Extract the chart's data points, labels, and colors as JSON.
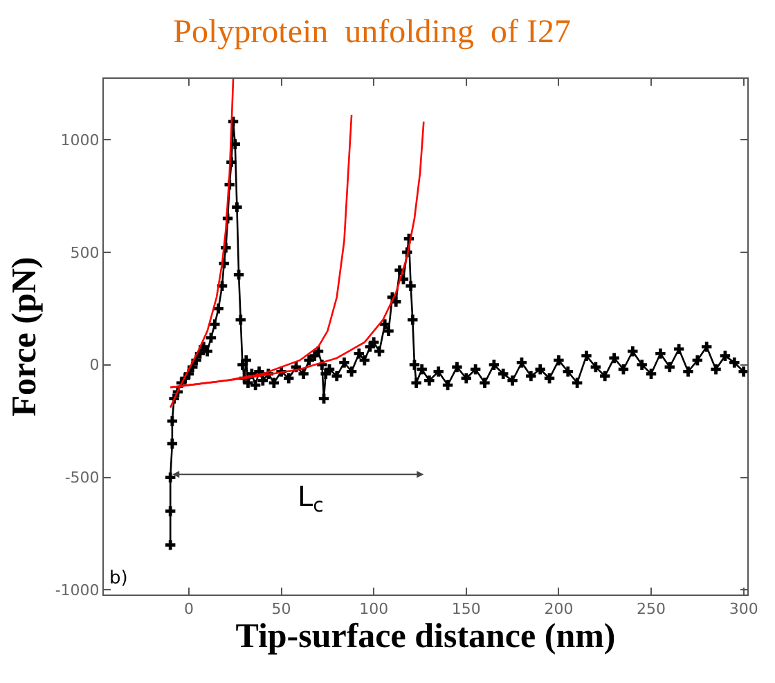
{
  "chart_data": {
    "type": "line",
    "title": "Polyprotein  unfolding  of I27",
    "xlabel": "Tip-surface distance (nm)",
    "ylabel": "Force (pN)",
    "xlim": [
      -46,
      302
    ],
    "xticks": [
      0,
      50,
      100,
      150,
      200,
      250,
      300
    ],
    "ylim": [
      -1020,
      1270
    ],
    "yticks": [
      -1000,
      -500,
      0,
      500,
      1000
    ],
    "series": [
      {
        "color": "#000000",
        "marker": "cross",
        "x": [
          -10,
          -10,
          -10,
          -9,
          -9,
          -8,
          -6,
          -4,
          -2,
          0,
          2,
          4,
          6,
          8,
          10,
          12,
          14,
          16,
          18,
          19,
          20,
          21,
          22,
          23,
          24,
          25,
          26,
          27,
          28,
          29,
          30,
          31,
          32,
          34,
          36,
          38,
          40,
          43,
          46,
          50,
          54,
          58,
          62,
          65,
          68,
          70,
          72,
          73,
          74,
          76,
          80,
          84,
          88,
          92,
          95,
          98,
          100,
          103,
          106,
          108,
          110,
          112,
          114,
          116,
          118,
          119,
          120,
          121,
          122,
          123,
          126,
          130,
          135,
          140,
          145,
          150,
          155,
          160,
          165,
          170,
          175,
          180,
          185,
          190,
          195,
          200,
          205,
          210,
          215,
          220,
          225,
          230,
          235,
          240,
          245,
          250,
          255,
          260,
          265,
          270,
          275,
          280,
          285,
          290,
          295,
          300
        ],
        "values": [
          -800,
          -650,
          -500,
          -350,
          -250,
          -150,
          -120,
          -80,
          -60,
          -40,
          -10,
          20,
          50,
          80,
          60,
          120,
          180,
          250,
          350,
          450,
          520,
          650,
          800,
          900,
          1080,
          980,
          700,
          400,
          200,
          0,
          -60,
          20,
          -80,
          -40,
          -90,
          -30,
          -70,
          -40,
          -80,
          -30,
          -60,
          -10,
          -40,
          20,
          40,
          60,
          0,
          -150,
          -40,
          -20,
          -50,
          10,
          -30,
          50,
          20,
          80,
          100,
          60,
          180,
          150,
          300,
          280,
          420,
          380,
          500,
          560,
          350,
          200,
          0,
          -80,
          -20,
          -70,
          -30,
          -90,
          -10,
          -60,
          -20,
          -80,
          0,
          -40,
          -70,
          10,
          -50,
          -20,
          -60,
          20,
          -30,
          -80,
          40,
          -10,
          -50,
          30,
          -20,
          60,
          0,
          -40,
          50,
          -10,
          70,
          -30,
          20,
          80,
          -20,
          40,
          10,
          -30
        ]
      },
      {
        "color": "#ff0000",
        "marker": "none",
        "x": [
          -10,
          -5,
          0,
          5,
          10,
          15,
          18,
          20,
          22,
          23,
          24
        ],
        "values": [
          -190,
          -100,
          -20,
          60,
          150,
          300,
          450,
          600,
          850,
          1050,
          1270
        ]
      },
      {
        "color": "#ff0000",
        "marker": "none",
        "x": [
          -10,
          20,
          40,
          60,
          70,
          75,
          80,
          84,
          88
        ],
        "values": [
          -100,
          -70,
          -40,
          20,
          80,
          150,
          300,
          550,
          1110
        ]
      },
      {
        "color": "#ff0000",
        "marker": "none",
        "x": [
          -10,
          30,
          60,
          80,
          95,
          105,
          112,
          118,
          122,
          125,
          127
        ],
        "values": [
          -100,
          -60,
          -20,
          30,
          100,
          200,
          320,
          480,
          650,
          850,
          1080
        ]
      }
    ],
    "annotations": [
      "L$_{c}$",
      "b)"
    ]
  }
}
